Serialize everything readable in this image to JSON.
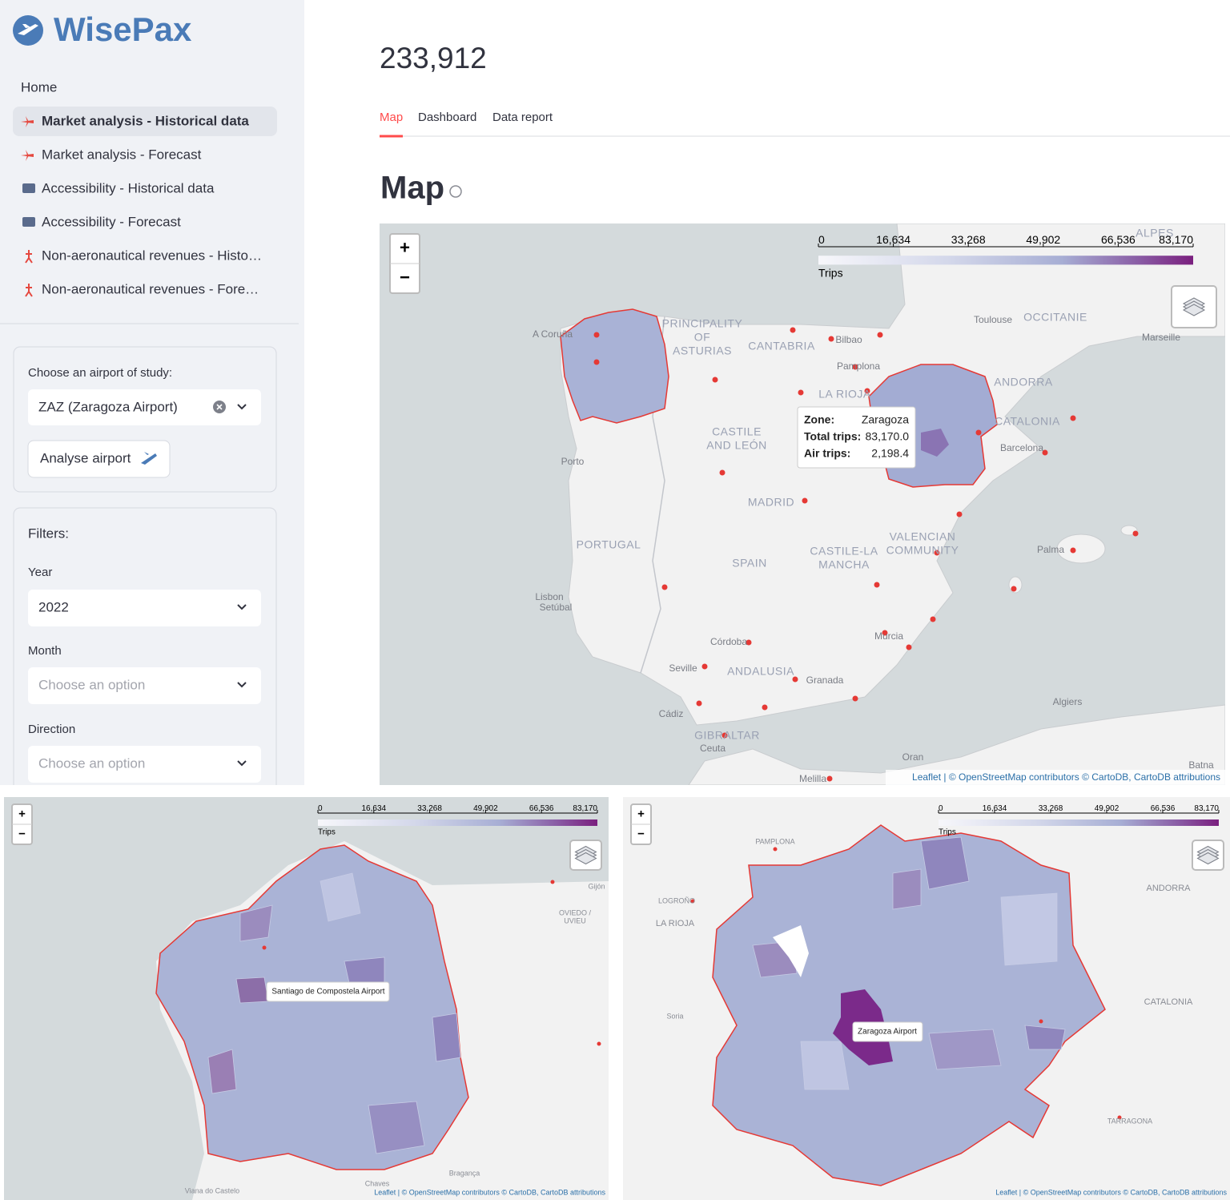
{
  "sidebar": {
    "logo": "WisePax",
    "nav": [
      "Home",
      "Market analysis - Historical data",
      "Market analysis - Forecast",
      "Accessibility - Historical data",
      "Accessibility - Forecast",
      "Non-aeronautical revenues - Histo…",
      "Non-aeronautical revenues - Fore…"
    ],
    "airport_panel": {
      "label": "Choose an airport of study:",
      "value": "ZAZ (Zaragoza Airport)",
      "button": "Analyse airport"
    },
    "filters": {
      "title": "Filters:",
      "fields": [
        {
          "label": "Year",
          "value": "2022"
        },
        {
          "label": "Month",
          "value": "Choose an option"
        },
        {
          "label": "Direction",
          "value": "Choose an option"
        }
      ]
    }
  },
  "main": {
    "metric": "233,912",
    "tabs": [
      "Map",
      "Dashboard",
      "Data report"
    ],
    "heading": "Map",
    "legend": {
      "ticks": [
        "0",
        "16,634",
        "33,268",
        "49,902",
        "66,536",
        "83,170"
      ],
      "title": "Trips"
    },
    "zoom": [
      "+",
      "−"
    ],
    "attribution": "Leaflet | © OpenStreetMap contributors © CartoDB, CartoDB attributions",
    "places": [
      "A Coruña",
      "PRINCIPALITY",
      "OF",
      "ASTURIAS",
      "CANTABRIA",
      "Bilbao",
      "Pamplona",
      "LA RIOJA",
      "Toulouse",
      "OCCITANIE",
      "Marseille",
      "ANDORRA",
      "CATALONIA",
      "Barcelona",
      "CASTILE",
      "AND LEÓN",
      "Porto",
      "MADRID",
      "PORTUGAL",
      "SPAIN",
      "CASTILE-LA",
      "MANCHA",
      "VALENCIAN",
      "COMMUNITY",
      "Palma",
      "Lisbon",
      "Setúbal",
      "Córdoba",
      "Murcia",
      "Seville",
      "ANDALUSIA",
      "Granada",
      "Cádiz",
      "GIBRALTAR",
      "Ceuta",
      "Algiers",
      "Oran",
      "Melilla",
      "Batna",
      "ALPES"
    ],
    "tooltip": [
      [
        "Zone:",
        "Zaragoza"
      ],
      [
        "Total trips:",
        "83,170.0"
      ],
      [
        "Air trips:",
        "2,198.4"
      ]
    ]
  },
  "zoom_maps": [
    {
      "tooltip": "Santiago de Compostela Airport",
      "places": [
        "Gijón",
        "OVIEDO /",
        "UVIEU",
        "Viana do Castelo",
        "Chaves",
        "Bragança"
      ]
    },
    {
      "tooltip": "Zaragoza Airport",
      "places": [
        "PAMPLONA",
        "LOGROÑO",
        "LA RIOJA",
        "ANDORRA",
        "CATALONIA",
        "Soria",
        "TARRAGONA"
      ]
    }
  ]
}
